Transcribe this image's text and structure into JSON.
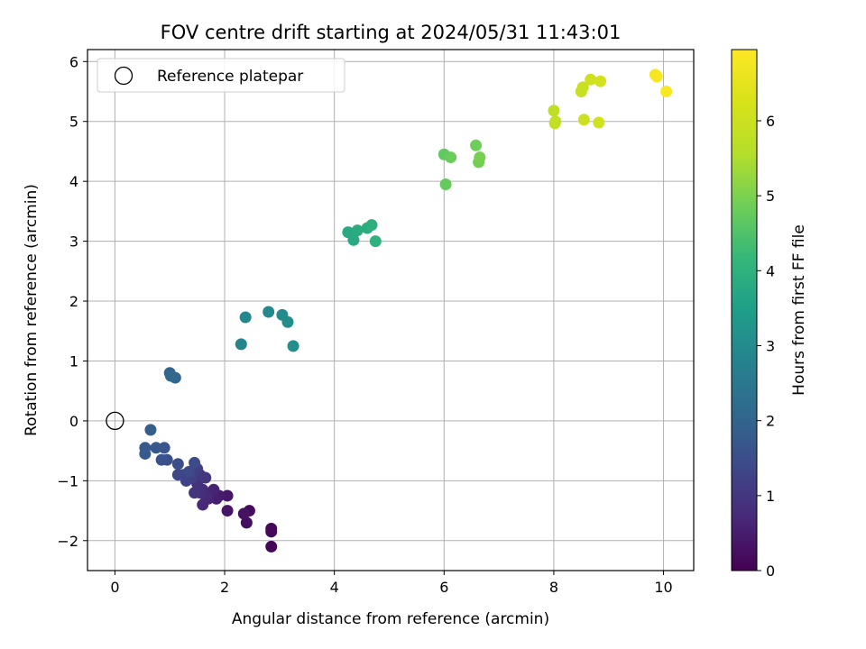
{
  "chart_data": {
    "type": "scatter",
    "title": "FOV centre drift starting at 2024/05/31 11:43:01",
    "xlabel": "Angular distance from reference (arcmin)",
    "ylabel": "Rotation from reference (arcmin)",
    "xlim": [
      -0.5,
      10.55
    ],
    "ylim": [
      -2.5,
      6.2
    ],
    "xticks": [
      0,
      2,
      4,
      6,
      8,
      10
    ],
    "yticks": [
      -2,
      -1,
      0,
      1,
      2,
      3,
      4,
      5,
      6
    ],
    "grid": true,
    "legend": {
      "placement": "upper-left",
      "entries": [
        "Reference platepar"
      ]
    },
    "reference_point": {
      "x": 0,
      "y": 0
    },
    "colorbar": {
      "label": "Hours from first FF file",
      "colormap": "viridis",
      "range": [
        0,
        6.95
      ],
      "ticks": [
        0,
        1,
        2,
        3,
        4,
        5,
        6
      ]
    },
    "points": [
      {
        "x": 2.85,
        "y": -2.1,
        "c": 0.05
      },
      {
        "x": 2.85,
        "y": -1.8,
        "c": 0.1
      },
      {
        "x": 2.85,
        "y": -1.85,
        "c": 0.15
      },
      {
        "x": 2.45,
        "y": -1.5,
        "c": 0.2
      },
      {
        "x": 2.4,
        "y": -1.7,
        "c": 0.25
      },
      {
        "x": 2.35,
        "y": -1.55,
        "c": 0.3
      },
      {
        "x": 2.05,
        "y": -1.5,
        "c": 0.35
      },
      {
        "x": 2.05,
        "y": -1.25,
        "c": 0.4
      },
      {
        "x": 1.9,
        "y": -1.25,
        "c": 0.45
      },
      {
        "x": 1.85,
        "y": -1.3,
        "c": 0.5
      },
      {
        "x": 1.75,
        "y": -1.2,
        "c": 0.55
      },
      {
        "x": 1.8,
        "y": -1.15,
        "c": 0.6
      },
      {
        "x": 1.7,
        "y": -1.3,
        "c": 0.65
      },
      {
        "x": 1.6,
        "y": -1.4,
        "c": 0.7
      },
      {
        "x": 1.65,
        "y": -1.25,
        "c": 0.75
      },
      {
        "x": 1.6,
        "y": -1.15,
        "c": 0.8
      },
      {
        "x": 1.55,
        "y": -1.2,
        "c": 0.85
      },
      {
        "x": 1.5,
        "y": -1.05,
        "c": 0.9
      },
      {
        "x": 1.45,
        "y": -1.2,
        "c": 0.95
      },
      {
        "x": 1.65,
        "y": -0.95,
        "c": 1.0
      },
      {
        "x": 1.55,
        "y": -0.9,
        "c": 1.05
      },
      {
        "x": 1.45,
        "y": -0.85,
        "c": 1.1
      },
      {
        "x": 1.5,
        "y": -0.8,
        "c": 1.15
      },
      {
        "x": 1.4,
        "y": -0.95,
        "c": 1.2
      },
      {
        "x": 1.3,
        "y": -1.0,
        "c": 1.25
      },
      {
        "x": 1.25,
        "y": -0.9,
        "c": 1.3
      },
      {
        "x": 1.15,
        "y": -0.9,
        "c": 1.35
      },
      {
        "x": 1.35,
        "y": -0.85,
        "c": 1.4
      },
      {
        "x": 1.45,
        "y": -0.7,
        "c": 1.45
      },
      {
        "x": 1.15,
        "y": -0.72,
        "c": 1.5
      },
      {
        "x": 0.95,
        "y": -0.65,
        "c": 1.55
      },
      {
        "x": 0.85,
        "y": -0.65,
        "c": 1.6
      },
      {
        "x": 0.9,
        "y": -0.45,
        "c": 1.65
      },
      {
        "x": 0.75,
        "y": -0.45,
        "c": 1.7
      },
      {
        "x": 0.55,
        "y": -0.45,
        "c": 1.75
      },
      {
        "x": 0.55,
        "y": -0.55,
        "c": 1.8
      },
      {
        "x": 0.65,
        "y": -0.15,
        "c": 1.85
      },
      {
        "x": 1.0,
        "y": 0.8,
        "c": 2.0
      },
      {
        "x": 1.1,
        "y": 0.72,
        "c": 2.05
      },
      {
        "x": 1.02,
        "y": 0.75,
        "c": 2.1
      },
      {
        "x": 2.3,
        "y": 1.28,
        "c": 2.85
      },
      {
        "x": 2.38,
        "y": 1.73,
        "c": 2.9
      },
      {
        "x": 2.8,
        "y": 1.82,
        "c": 2.95
      },
      {
        "x": 3.05,
        "y": 1.77,
        "c": 3.0
      },
      {
        "x": 3.15,
        "y": 1.65,
        "c": 3.05
      },
      {
        "x": 3.25,
        "y": 1.25,
        "c": 3.1
      },
      {
        "x": 4.25,
        "y": 3.15,
        "c": 3.75
      },
      {
        "x": 4.35,
        "y": 3.02,
        "c": 3.8
      },
      {
        "x": 4.42,
        "y": 3.18,
        "c": 3.85
      },
      {
        "x": 4.6,
        "y": 3.22,
        "c": 3.9
      },
      {
        "x": 4.68,
        "y": 3.27,
        "c": 3.95
      },
      {
        "x": 4.75,
        "y": 3.0,
        "c": 4.0
      },
      {
        "x": 6.0,
        "y": 4.45,
        "c": 4.7
      },
      {
        "x": 6.03,
        "y": 3.95,
        "c": 4.75
      },
      {
        "x": 6.12,
        "y": 4.4,
        "c": 4.8
      },
      {
        "x": 6.58,
        "y": 4.6,
        "c": 4.85
      },
      {
        "x": 6.63,
        "y": 4.32,
        "c": 4.9
      },
      {
        "x": 6.65,
        "y": 4.4,
        "c": 4.95
      },
      {
        "x": 8.0,
        "y": 5.18,
        "c": 5.75
      },
      {
        "x": 8.02,
        "y": 4.97,
        "c": 5.8
      },
      {
        "x": 8.03,
        "y": 5.0,
        "c": 5.85
      },
      {
        "x": 8.5,
        "y": 5.5,
        "c": 5.9
      },
      {
        "x": 8.53,
        "y": 5.57,
        "c": 5.95
      },
      {
        "x": 8.55,
        "y": 5.03,
        "c": 6.0
      },
      {
        "x": 8.67,
        "y": 5.7,
        "c": 6.05
      },
      {
        "x": 8.82,
        "y": 4.98,
        "c": 6.1
      },
      {
        "x": 8.85,
        "y": 5.67,
        "c": 6.15
      },
      {
        "x": 9.85,
        "y": 5.78,
        "c": 6.8
      },
      {
        "x": 9.88,
        "y": 5.75,
        "c": 6.85
      },
      {
        "x": 10.05,
        "y": 5.5,
        "c": 6.9
      }
    ]
  }
}
